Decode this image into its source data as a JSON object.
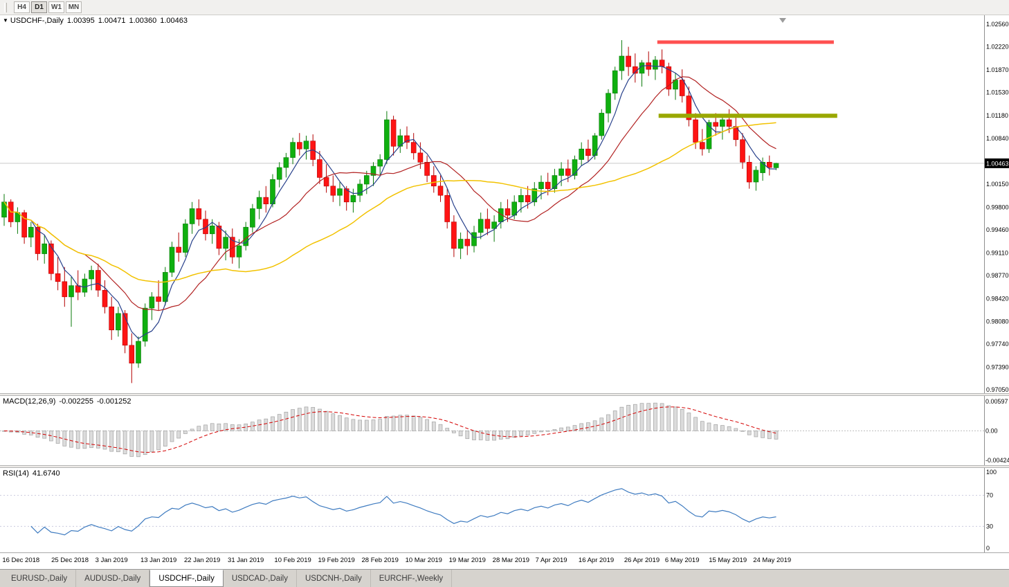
{
  "toolbar": {
    "timeframes": [
      "H4",
      "D1",
      "W1",
      "MN"
    ],
    "active": "D1"
  },
  "chart": {
    "title": {
      "arrow": "▼",
      "symbol": "USDCHF-,Daily",
      "open": "1.00395",
      "high": "1.00471",
      "low": "1.00360",
      "close": "1.00463"
    },
    "current_price": "1.00463",
    "price_axis_labels": [
      "1.02560",
      "1.02220",
      "1.01870",
      "1.01530",
      "1.01180",
      "1.00840",
      "1.00150",
      "0.99800",
      "0.99460",
      "0.99110",
      "0.98770",
      "0.98420",
      "0.98080",
      "0.97740",
      "0.97390",
      "0.97050"
    ]
  },
  "colors": {
    "bull": "#0FAF0F",
    "bull_border": "#0A7A0A",
    "bear": "#FE1414",
    "bear_border": "#B40000",
    "rsi_line": "#3E7BC0",
    "macd_signal": "#D40000",
    "macd_hist": "#DCDCDC",
    "price_tag_bg": "#000000",
    "price_tag_text": "#FFFFFF",
    "current_price_line": "#C9C9C9",
    "axis_border": "#8E8E8E"
  },
  "chart_data": {
    "type": "candlestick",
    "symbol": "USDCHF-",
    "timeframe": "Daily",
    "current_price": 1.00463,
    "y_axis": {
      "price_top": 1.0256,
      "price_bottom": 0.9705
    },
    "ohlc": [
      [
        0.9965,
        1.0,
        0.9952,
        0.9988
      ],
      [
        0.9988,
        0.9992,
        0.995,
        0.9958
      ],
      [
        0.9958,
        0.998,
        0.994,
        0.9972
      ],
      [
        0.9972,
        0.9976,
        0.9925,
        0.9935
      ],
      [
        0.9935,
        0.9958,
        0.992,
        0.995
      ],
      [
        0.995,
        0.9955,
        0.99,
        0.991
      ],
      [
        0.991,
        0.9938,
        0.9895,
        0.9925
      ],
      [
        0.9925,
        0.993,
        0.987,
        0.988
      ],
      [
        0.988,
        0.9905,
        0.9855,
        0.9868
      ],
      [
        0.9868,
        0.989,
        0.983,
        0.9845
      ],
      [
        0.9845,
        0.9875,
        0.98,
        0.9862
      ],
      [
        0.9862,
        0.9885,
        0.984,
        0.9852
      ],
      [
        0.9852,
        0.988,
        0.9845,
        0.9872
      ],
      [
        0.9872,
        0.9892,
        0.9855,
        0.9885
      ],
      [
        0.9885,
        0.9895,
        0.9845,
        0.9855
      ],
      [
        0.9855,
        0.987,
        0.982,
        0.983
      ],
      [
        0.983,
        0.9845,
        0.978,
        0.9795
      ],
      [
        0.9795,
        0.983,
        0.9785,
        0.982
      ],
      [
        0.982,
        0.9825,
        0.976,
        0.9772
      ],
      [
        0.9772,
        0.979,
        0.9715,
        0.9745
      ],
      [
        0.9745,
        0.9785,
        0.9738,
        0.9778
      ],
      [
        0.9778,
        0.9835,
        0.977,
        0.9828
      ],
      [
        0.9828,
        0.9852,
        0.981,
        0.9845
      ],
      [
        0.9845,
        0.987,
        0.9825,
        0.9838
      ],
      [
        0.9838,
        0.989,
        0.9832,
        0.9882
      ],
      [
        0.9882,
        0.9928,
        0.9875,
        0.992
      ],
      [
        0.992,
        0.9942,
        0.9898,
        0.9912
      ],
      [
        0.9912,
        0.9962,
        0.9905,
        0.9955
      ],
      [
        0.9955,
        0.9988,
        0.994,
        0.9978
      ],
      [
        0.9978,
        0.9992,
        0.9952,
        0.9962
      ],
      [
        0.9962,
        0.9975,
        0.993,
        0.994
      ],
      [
        0.994,
        0.9962,
        0.9925,
        0.9952
      ],
      [
        0.9952,
        0.9958,
        0.9908,
        0.9918
      ],
      [
        0.9918,
        0.9945,
        0.99,
        0.9935
      ],
      [
        0.9935,
        0.9948,
        0.9895,
        0.9905
      ],
      [
        0.9905,
        0.9932,
        0.9888,
        0.9922
      ],
      [
        0.9922,
        0.9958,
        0.9915,
        0.995
      ],
      [
        0.995,
        0.9985,
        0.9942,
        0.9978
      ],
      [
        0.9978,
        1.0005,
        0.9962,
        0.9995
      ],
      [
        0.9995,
        1.0012,
        0.9972,
        0.9985
      ],
      [
        0.9985,
        1.003,
        0.998,
        1.0022
      ],
      [
        1.0022,
        1.0048,
        1.001,
        1.004
      ],
      [
        1.004,
        1.0062,
        1.0025,
        1.0055
      ],
      [
        1.0055,
        1.0085,
        1.0045,
        1.0078
      ],
      [
        1.0078,
        1.0092,
        1.0058,
        1.0068
      ],
      [
        1.0068,
        1.0088,
        1.0052,
        1.008
      ],
      [
        1.008,
        1.009,
        1.0042,
        1.0052
      ],
      [
        1.0052,
        1.0065,
        1.0015,
        1.0025
      ],
      [
        1.0025,
        1.0045,
        1.0002,
        1.0012
      ],
      [
        1.0012,
        1.0028,
        0.9988,
        0.9998
      ],
      [
        0.9998,
        1.0018,
        0.9982,
        1.0008
      ],
      [
        1.0008,
        1.0012,
        0.9975,
        0.9988
      ],
      [
        0.9988,
        1.0008,
        0.9972,
        0.9998
      ],
      [
        0.9998,
        1.0022,
        0.9988,
        1.0015
      ],
      [
        1.0015,
        1.0035,
        1.0,
        1.0028
      ],
      [
        1.0028,
        1.0048,
        1.0012,
        1.0042
      ],
      [
        1.0042,
        1.006,
        1.0028,
        1.0052
      ],
      [
        1.0052,
        1.0125,
        1.0045,
        1.0112
      ],
      [
        1.0112,
        1.0118,
        1.0058,
        1.0072
      ],
      [
        1.0072,
        1.0098,
        1.0062,
        1.0088
      ],
      [
        1.0088,
        1.0102,
        1.0068,
        1.0078
      ],
      [
        1.0078,
        1.0092,
        1.0052,
        1.0062
      ],
      [
        1.0062,
        1.0078,
        1.0038,
        1.0048
      ],
      [
        1.0048,
        1.0058,
        1.0018,
        1.0028
      ],
      [
        1.0028,
        1.0042,
        1.0002,
        1.0012
      ],
      [
        1.0012,
        1.0028,
        0.9988,
        0.9998
      ],
      [
        0.9998,
        1.0008,
        0.9948,
        0.9958
      ],
      [
        0.9958,
        0.9968,
        0.9905,
        0.9918
      ],
      [
        0.9918,
        0.9942,
        0.9902,
        0.9932
      ],
      [
        0.9932,
        0.9945,
        0.9908,
        0.9922
      ],
      [
        0.9922,
        0.9952,
        0.9912,
        0.9942
      ],
      [
        0.9942,
        0.9972,
        0.9932,
        0.9962
      ],
      [
        0.9962,
        0.9978,
        0.9938,
        0.9948
      ],
      [
        0.9948,
        0.9968,
        0.9928,
        0.9958
      ],
      [
        0.9958,
        0.9988,
        0.9948,
        0.9978
      ],
      [
        0.9978,
        0.9992,
        0.9958,
        0.9968
      ],
      [
        0.9968,
        0.9998,
        0.9962,
        0.9988
      ],
      [
        0.9988,
        1.0008,
        0.9972,
        0.9998
      ],
      [
        0.9998,
        1.0012,
        0.9978,
        0.9988
      ],
      [
        0.9988,
        1.0018,
        0.9982,
        1.0008
      ],
      [
        1.0008,
        1.0028,
        0.9992,
        1.0018
      ],
      [
        1.0018,
        1.0032,
        0.9998,
        1.0008
      ],
      [
        1.0008,
        1.0038,
        1.0002,
        1.0028
      ],
      [
        1.0028,
        1.0048,
        1.0012,
        1.0038
      ],
      [
        1.0038,
        1.0052,
        1.0018,
        1.0028
      ],
      [
        1.0028,
        1.0058,
        1.0022,
        1.0052
      ],
      [
        1.0052,
        1.0078,
        1.0042,
        1.0068
      ],
      [
        1.0068,
        1.0082,
        1.0048,
        1.0058
      ],
      [
        1.0058,
        1.0092,
        1.0052,
        1.0088
      ],
      [
        1.0088,
        1.0128,
        1.0082,
        1.0122
      ],
      [
        1.0122,
        1.0158,
        1.0108,
        1.0152
      ],
      [
        1.0152,
        1.0192,
        1.0142,
        1.0186
      ],
      [
        1.0186,
        1.0232,
        1.0172,
        1.0208
      ],
      [
        1.0208,
        1.0222,
        1.0178,
        1.0192
      ],
      [
        1.0192,
        1.0212,
        1.0168,
        1.0182
      ],
      [
        1.0182,
        1.0202,
        1.0162,
        1.0198
      ],
      [
        1.0198,
        1.0215,
        1.0178,
        1.0188
      ],
      [
        1.0188,
        1.0208,
        1.0172,
        1.0202
      ],
      [
        1.0202,
        1.0218,
        1.0182,
        1.0192
      ],
      [
        1.0192,
        1.0198,
        1.0148,
        1.0158
      ],
      [
        1.0158,
        1.0182,
        1.0142,
        1.0172
      ],
      [
        1.0172,
        1.0188,
        1.0138,
        1.0148
      ],
      [
        1.0148,
        1.0162,
        1.0102,
        1.0112
      ],
      [
        1.0112,
        1.0122,
        1.0068,
        1.0078
      ],
      [
        1.0078,
        1.0098,
        1.0058,
        1.0068
      ],
      [
        1.0068,
        1.0112,
        1.0062,
        1.0108
      ],
      [
        1.0108,
        1.0122,
        1.0088,
        1.0102
      ],
      [
        1.0102,
        1.0118,
        1.0082,
        1.0112
      ],
      [
        1.0112,
        1.0128,
        1.0092,
        1.0102
      ],
      [
        1.0102,
        1.0118,
        1.0072,
        1.0082
      ],
      [
        1.0082,
        1.0092,
        1.0038,
        1.0048
      ],
      [
        1.0048,
        1.0058,
        1.0008,
        1.0018
      ],
      [
        1.0018,
        1.0042,
        1.0005,
        1.0036
      ],
      [
        1.0032,
        1.0055,
        1.002,
        1.0048
      ],
      [
        1.0048,
        1.0058,
        1.0028,
        1.004
      ],
      [
        1.00395,
        1.00471,
        1.0036,
        1.00463
      ]
    ],
    "x_labels": [
      {
        "t": "16 Dec 2018",
        "i": 2.5
      },
      {
        "t": "25 Dec 2018",
        "i": 9.8
      },
      {
        "t": "3 Jan 2019",
        "i": 16
      },
      {
        "t": "13 Jan 2019",
        "i": 23
      },
      {
        "t": "22 Jan 2019",
        "i": 29.5
      },
      {
        "t": "31 Jan 2019",
        "i": 36
      },
      {
        "t": "10 Feb 2019",
        "i": 43
      },
      {
        "t": "19 Feb 2019",
        "i": 49.5
      },
      {
        "t": "28 Feb 2019",
        "i": 56
      },
      {
        "t": "10 Mar 2019",
        "i": 62.5
      },
      {
        "t": "19 Mar 2019",
        "i": 69
      },
      {
        "t": "28 Mar 2019",
        "i": 75.5
      },
      {
        "t": "7 Apr 2019",
        "i": 81.5
      },
      {
        "t": "16 Apr 2019",
        "i": 88.2
      },
      {
        "t": "26 Apr 2019",
        "i": 95
      },
      {
        "t": "6 May 2019",
        "i": 101
      },
      {
        "t": "15 May 2019",
        "i": 107.8
      },
      {
        "t": "24 May 2019",
        "i": 114.4
      }
    ],
    "overlays": {
      "moving_averages": [
        {
          "period": 5,
          "color": "#27408B",
          "width": 1.2
        },
        {
          "period": 13,
          "color": "#B22222",
          "width": 1.2
        },
        {
          "period": 34,
          "color": "#F2C200",
          "width": 1.5
        }
      ]
    },
    "trendlines": [
      {
        "name": "resistance-line",
        "price": 1.0229,
        "from_bar": 97.3,
        "to_bar": 123.6,
        "color": "#FF5050",
        "thickness": 5
      },
      {
        "name": "support-line",
        "price": 1.0118,
        "from_bar": 97.5,
        "to_bar": 124.1,
        "color": "#9AA800",
        "thickness": 6
      }
    ]
  },
  "macd": {
    "name": "MACD(12,26,9)",
    "value": "-0.002255",
    "signal_value": "-0.001252",
    "axis_labels": [
      "0.00597",
      "0.00",
      "-0.00424"
    ]
  },
  "rsi": {
    "name": "RSI(14)",
    "value": "41.6740",
    "levels": [
      70,
      30
    ],
    "axis_labels": [
      "100",
      "70",
      "30",
      "0"
    ]
  },
  "tabs": {
    "active_index": 2,
    "items": [
      {
        "label": "EURUSD-,Daily"
      },
      {
        "label": "AUDUSD-,Daily"
      },
      {
        "label": "USDCHF-,Daily"
      },
      {
        "label": "USDCAD-,Daily"
      },
      {
        "label": "USDCNH-,Daily"
      },
      {
        "label": "EURCHF-,Weekly"
      }
    ]
  }
}
